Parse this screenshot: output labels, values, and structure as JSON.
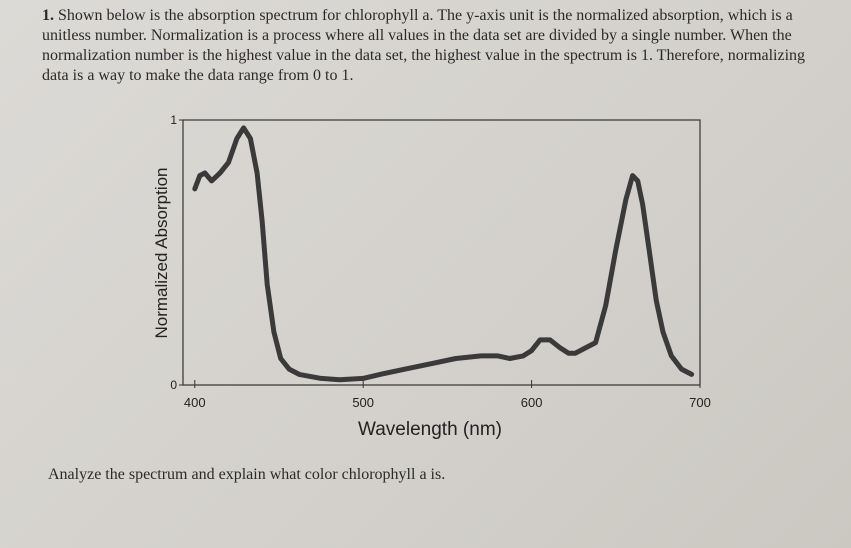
{
  "question": {
    "number": "1.",
    "text": "Shown below is the absorption spectrum for chlorophyll a. The y-axis unit is the normalized absorption, which is a unitless number. Normalization is a process where all values in the data set are divided by a single number. When the normalization number is the highest value in the data set, the highest value in the spectrum is 1. Therefore, normalizing data is a way to make the data range from 0 to 1."
  },
  "chart_data": {
    "type": "line",
    "x_label": "Wavelength (nm)",
    "y_label": "Normalized Absorption",
    "x": [
      400,
      403,
      406,
      410,
      415,
      420,
      425,
      429,
      433,
      437,
      440,
      443,
      447,
      451,
      456,
      462,
      475,
      486,
      500,
      510,
      525,
      540,
      555,
      570,
      580,
      587,
      595,
      600,
      605,
      611,
      617,
      622,
      626,
      632,
      638,
      644,
      650,
      656,
      660,
      663,
      666,
      670,
      674,
      678,
      683,
      689,
      695
    ],
    "series": [
      {
        "color": "#3a3a3a",
        "values": [
          0.74,
          0.79,
          0.8,
          0.77,
          0.8,
          0.84,
          0.93,
          0.97,
          0.93,
          0.8,
          0.62,
          0.38,
          0.2,
          0.1,
          0.06,
          0.04,
          0.025,
          0.02,
          0.025,
          0.04,
          0.06,
          0.08,
          0.1,
          0.11,
          0.11,
          0.1,
          0.11,
          0.13,
          0.17,
          0.17,
          0.14,
          0.12,
          0.12,
          0.14,
          0.16,
          0.3,
          0.51,
          0.7,
          0.79,
          0.77,
          0.68,
          0.5,
          0.32,
          0.2,
          0.11,
          0.06,
          0.04
        ]
      }
    ],
    "xlim": [
      393,
      700
    ],
    "ylim": [
      0,
      1
    ],
    "xticks": [
      400,
      500,
      600,
      700
    ],
    "yticks": [
      0,
      1
    ]
  },
  "prompt": "Analyze the spectrum and explain what color chlorophyll a is."
}
